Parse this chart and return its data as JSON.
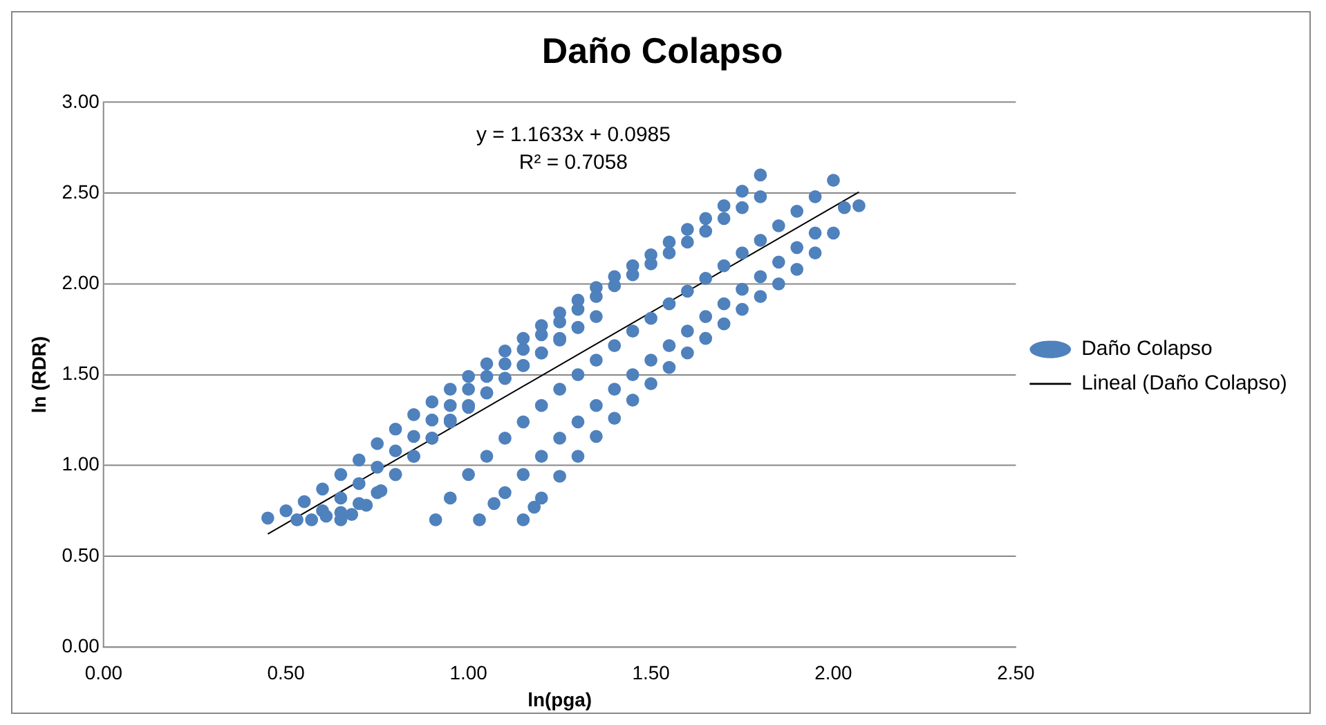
{
  "chart_data": {
    "type": "scatter",
    "title": "Daño Colapso",
    "xlabel": "ln(pga)",
    "ylabel": "ln (RDR)",
    "annotations": [
      "y = 1.1633x + 0.0985",
      "R² = 0.7058"
    ],
    "xlim": [
      0,
      2.5
    ],
    "xticks": [
      {
        "value": 0,
        "label": "0.00"
      },
      {
        "value": 0.5,
        "label": "0.50"
      },
      {
        "value": 1,
        "label": "1.00"
      },
      {
        "value": 1.5,
        "label": "1.50"
      },
      {
        "value": 2,
        "label": "2.00"
      },
      {
        "value": 2.5,
        "label": "2.50"
      }
    ],
    "ylim": [
      0,
      3
    ],
    "yticks": [
      {
        "value": 0,
        "label": "0.00"
      },
      {
        "value": 0.5,
        "label": "0.50"
      },
      {
        "value": 1,
        "label": "1.00"
      },
      {
        "value": 1.5,
        "label": "1.50"
      },
      {
        "value": 2,
        "label": "2.00"
      },
      {
        "value": 2.5,
        "label": "2.50"
      },
      {
        "value": 3,
        "label": "3.00"
      }
    ],
    "grid": "y",
    "legend": "right",
    "marker": "circle",
    "series": [
      {
        "name": "Daño Colapso",
        "color": "#4f81bd",
        "x": [
          0.45,
          0.5,
          0.55,
          0.6,
          0.65,
          0.7,
          0.75,
          0.8,
          0.85,
          0.9,
          0.95,
          1.0,
          1.05,
          1.1,
          1.15,
          1.2,
          1.25,
          1.3,
          1.35,
          1.4,
          1.45,
          1.5,
          1.55,
          1.6,
          1.65,
          1.7,
          1.75,
          1.8,
          0.53,
          0.6,
          0.65,
          0.7,
          0.75,
          0.8,
          0.85,
          0.9,
          0.95,
          1.0,
          1.05,
          1.1,
          1.15,
          1.2,
          1.25,
          1.3,
          1.35,
          1.4,
          1.45,
          1.5,
          1.55,
          1.6,
          1.65,
          1.7,
          1.75,
          1.8,
          0.57,
          0.61,
          0.65,
          0.7,
          0.75,
          0.8,
          0.85,
          0.9,
          0.95,
          1.0,
          1.05,
          1.1,
          1.15,
          1.2,
          1.25,
          1.3,
          1.35,
          0.65,
          0.68,
          0.72,
          0.76,
          0.8,
          0.85,
          0.9,
          0.95,
          1.0,
          1.05,
          1.1,
          1.15,
          1.2,
          1.25,
          1.3,
          0.91,
          0.95,
          1.0,
          1.05,
          1.1,
          1.15,
          1.2,
          1.25,
          1.3,
          1.35,
          1.4,
          1.45,
          1.5,
          1.55,
          1.6,
          1.65,
          1.7,
          1.75,
          1.8,
          1.85,
          1.9,
          1.95,
          2.0,
          1.03,
          1.07,
          1.1,
          1.15,
          1.2,
          1.25,
          1.3,
          1.35,
          1.4,
          1.45,
          1.5,
          1.55,
          1.6,
          1.65,
          1.7,
          1.75,
          1.8,
          1.85,
          1.9,
          1.95,
          2.03,
          1.15,
          1.18,
          1.2,
          1.25,
          1.3,
          1.35,
          1.4,
          1.45,
          1.5,
          1.55,
          1.6,
          1.65,
          1.7,
          1.75,
          1.8,
          1.85,
          1.9,
          1.95,
          2.0,
          2.07
        ],
        "values": [
          0.71,
          0.75,
          0.8,
          0.87,
          0.95,
          1.03,
          1.12,
          1.2,
          1.28,
          1.35,
          1.42,
          1.49,
          1.56,
          1.63,
          1.7,
          1.77,
          1.84,
          1.91,
          1.98,
          2.04,
          2.1,
          2.16,
          2.23,
          2.3,
          2.36,
          2.43,
          2.51,
          2.6,
          0.7,
          0.75,
          0.82,
          0.9,
          0.99,
          1.08,
          1.16,
          1.25,
          1.33,
          1.42,
          1.49,
          1.56,
          1.64,
          1.72,
          1.79,
          1.86,
          1.93,
          1.99,
          2.05,
          2.11,
          2.17,
          2.23,
          2.29,
          2.36,
          2.42,
          2.48,
          0.7,
          0.72,
          0.74,
          0.79,
          0.85,
          0.95,
          1.05,
          1.15,
          1.25,
          1.33,
          1.4,
          1.48,
          1.55,
          1.62,
          1.7,
          1.76,
          1.82,
          0.7,
          0.73,
          0.78,
          0.86,
          0.95,
          1.05,
          1.15,
          1.24,
          1.32,
          1.4,
          1.48,
          1.55,
          1.62,
          1.69,
          1.76,
          0.7,
          0.82,
          0.95,
          1.05,
          1.15,
          1.24,
          1.33,
          1.42,
          1.5,
          1.58,
          1.66,
          1.74,
          1.81,
          1.89,
          1.96,
          2.03,
          2.1,
          2.17,
          2.24,
          2.32,
          2.4,
          2.48,
          2.57,
          0.7,
          0.79,
          0.85,
          0.95,
          1.05,
          1.15,
          1.24,
          1.33,
          1.42,
          1.5,
          1.58,
          1.66,
          1.74,
          1.82,
          1.89,
          1.97,
          2.04,
          2.12,
          2.2,
          2.28,
          2.42,
          0.7,
          0.77,
          0.82,
          0.94,
          1.05,
          1.16,
          1.26,
          1.36,
          1.45,
          1.54,
          1.62,
          1.7,
          1.78,
          1.86,
          1.93,
          2.0,
          2.08,
          2.17,
          2.28,
          2.43
        ]
      },
      {
        "name": "Lineal (Daño Colapso)",
        "type": "line",
        "color": "#000000",
        "marker": "none",
        "line_style": "solid",
        "x": [
          0.45,
          2.07
        ],
        "values": [
          0.622,
          2.506
        ]
      }
    ]
  }
}
